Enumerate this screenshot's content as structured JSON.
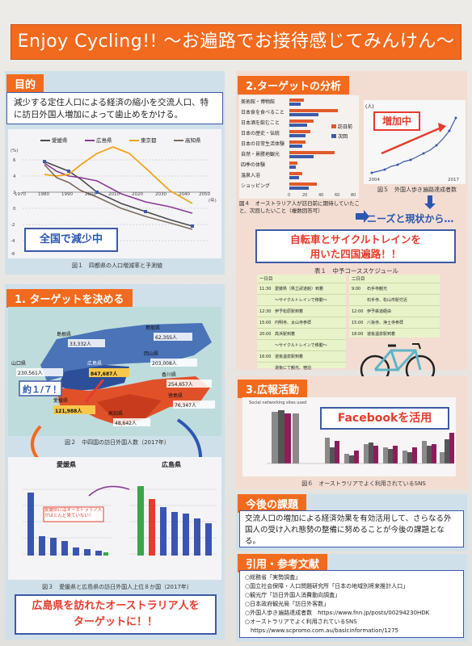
{
  "title": "Enjoy  Cycling!! ～お遍路でお接待感じてみんけん～",
  "mokuteki": {
    "header": "目的",
    "text": "減少する定住人口による経済の縮小を交流人口、特に訪日外国人増加によって歯止めをかける。",
    "legend": [
      "愛媛県",
      "広島県",
      "東京都",
      "高知県"
    ],
    "callout": "全国で減少中",
    "caption": "図１　四都県の人口増減率と予測値",
    "unit": "(%)",
    "xunit": "(年)",
    "xticks": [
      "1970",
      "1980",
      "1990",
      "2000",
      "2010",
      "2020",
      "2030",
      "2040",
      "2050"
    ],
    "yticks": [
      "6",
      "4",
      "2",
      "0",
      "-2",
      "-4",
      "-6",
      "-8"
    ]
  },
  "target": {
    "header": "1. ターゲットを決める",
    "prefectures": [
      {
        "name": "島根県",
        "value": "33,332人"
      },
      {
        "name": "鳥取県",
        "value": "62,3SS人"
      },
      {
        "name": "岡山県",
        "value": "203,008人"
      },
      {
        "name": "山口県",
        "value": "230,561人"
      },
      {
        "name": "広島県",
        "value": "847,687人"
      },
      {
        "name": "香川県",
        "value": "254,657人"
      },
      {
        "name": "徳島県",
        "value": "76,347人"
      },
      {
        "name": "愛媛県",
        "value": "121,988人"
      },
      {
        "name": "高知県",
        "value": "48,642人"
      }
    ],
    "ratio": "約１/７！",
    "caption_map": "図２　中四国の訪日外国人数（2017年）",
    "chart_left_title": "愛媛県",
    "chart_right_title": "広島県",
    "note": "愛媛県にはオーストラリア人がほとんど来ていない！",
    "caption_bars": "図３　愛媛県と広島県の訪日外国人上位８か国（2017年）",
    "conclusion_line1": "広島県を訪れたオーストラリア人を",
    "conclusion_line2": "ターゲットに！！"
  },
  "analysis": {
    "header": "2.ターゲットの分析",
    "items": [
      "美術館・博物館",
      "日本食を食べること",
      "日本酒を飲むこと",
      "日本の歴史・伝統",
      "日本の日常生活体験",
      "自然・景勝地観光",
      "四季の体験",
      "温泉入浴",
      "ショッピング"
    ],
    "legend": [
      "訪日前",
      "次回"
    ],
    "caption_left": "図４　オーストラリア人が訪日前に期待していたこと、次回したいこと（複数回答可）",
    "caption_right": "図５　外国人歩き遍路達成者数",
    "increase": "増加中",
    "unit": "(人)",
    "x_start": "2004",
    "x_end": "2017",
    "needs": "ニーズと現状から…",
    "proposal_line1": "自転車とサイクルトレインを",
    "proposal_line2": "用いた四国遍路！！",
    "schedule_title": "表１　中予コーススケジュール",
    "day1_label": "一日目",
    "day2_label": "二日目",
    "day1": [
      {
        "time": "11:30",
        "event": "愛媛県（県立武道館）到着"
      },
      {
        "time": "",
        "event": "～サイクルトレインで移動～"
      },
      {
        "time": "12:30",
        "event": "伊予松原駅到着"
      },
      {
        "time": "15:00",
        "event": "円明寺、太山寺参拝"
      },
      {
        "time": "20:00",
        "event": "高浜駅到着"
      },
      {
        "time": "",
        "event": "～サイクルトレインで移動～"
      },
      {
        "time": "16:00",
        "event": "道後温泉駅到着"
      },
      {
        "time": "",
        "event": "道後にて観光、宿泊"
      }
    ],
    "day2": [
      {
        "time": "9:00",
        "event": "石手寺観光"
      },
      {
        "time": "",
        "event": "石手寺、松山市駅付近"
      },
      {
        "time": "12:00",
        "event": "伊予鉄道経由"
      },
      {
        "time": "15:00",
        "event": "八坂寺、浄土寺参拝"
      },
      {
        "time": "18:00",
        "event": "道後温泉駅到着"
      }
    ]
  },
  "pr": {
    "header": "3.広報活動",
    "chart_title": "Social networking sites used",
    "facebook": "Facebookを活用",
    "caption": "図６　オーストラリアでよく利用されているSNS"
  },
  "future": {
    "header": "今後の課題",
    "text": "交流人口の増加による経済効果を有効活用して、さらなる外国人の受け入れ態勢の整備に努めることが今後の課題となる。"
  },
  "refs": {
    "header": "引用・参考文献",
    "items": [
      "○総務省「実勢調査」",
      "○国立社会保障・人口問題研究所「日本の地域別将来推計人口」",
      "○観光庁「訪日外国人消費動向調査」",
      "○日本政府観光局「訪日外客数」",
      "○外国人歩き遍路達成者数　https://www.fnn.jp/posts/00294230HDK",
      "○オーストラリアでよく利用されているSNS",
      "　https://www.scpromo.com.au/basicinformation/1275"
    ]
  },
  "colors": {
    "orange": "#f26a1d",
    "blue": "#3d5aa8",
    "red": "#e53c2e",
    "maroon": "#8b1d5a"
  }
}
